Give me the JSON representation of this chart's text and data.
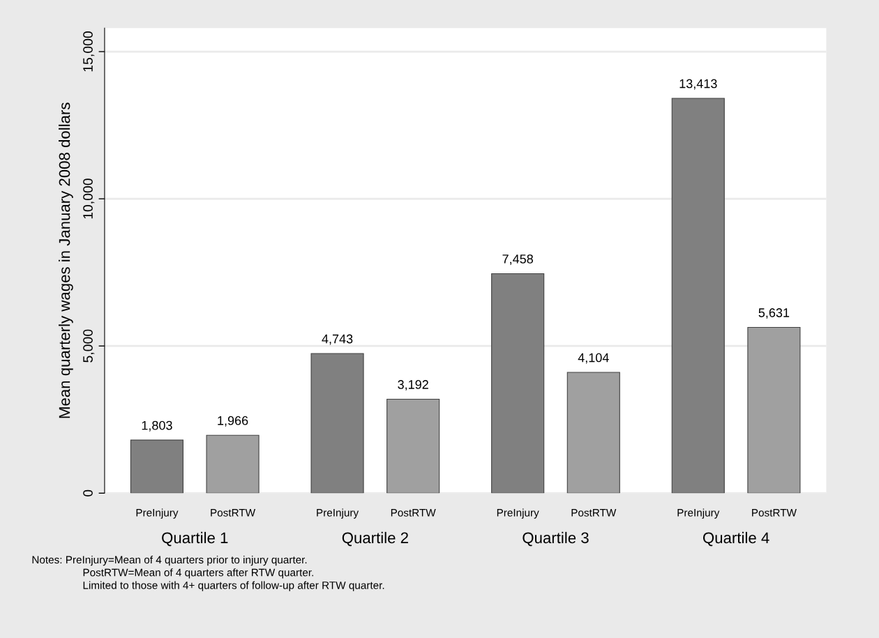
{
  "chart_data": {
    "type": "bar",
    "ylabel": "Mean quarterly wages in January 2008 dollars",
    "categories": [
      "Quartile 1",
      "Quartile 2",
      "Quartile 3",
      "Quartile 4"
    ],
    "series": [
      {
        "name": "PreInjury",
        "color": "#808080",
        "values": [
          1803,
          4743,
          7458,
          13413
        ],
        "value_labels": [
          "1,803",
          "4,743",
          "7,458",
          "13,413"
        ]
      },
      {
        "name": "PostRTW",
        "color": "#a0a0a0",
        "values": [
          1966,
          3192,
          4104,
          5631
        ],
        "value_labels": [
          "1,966",
          "3,192",
          "4,104",
          "5,631"
        ]
      }
    ],
    "ylim": [
      0,
      15800
    ],
    "yticks": [
      {
        "value": 0,
        "label": "0"
      },
      {
        "value": 5000,
        "label": "5,000"
      },
      {
        "value": 10000,
        "label": "10,000"
      },
      {
        "value": 15000,
        "label": "15,000"
      }
    ],
    "grid": "y",
    "annotations": [
      "Notes: PreInjury=Mean of 4 quarters prior to injury quarter.",
      "PostRTW=Mean of 4 quarters after RTW quarter.",
      "Limited to those with 4+ quarters of follow-up after RTW quarter."
    ]
  }
}
